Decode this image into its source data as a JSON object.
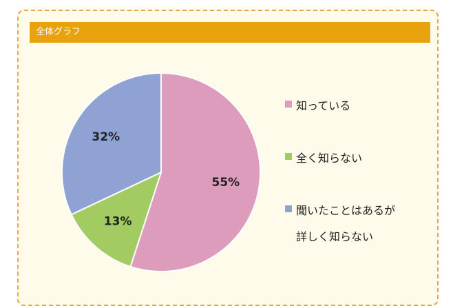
{
  "panel": {
    "title": "全体グラフ"
  },
  "colors": {
    "title_bar": "#e8a20c",
    "panel_border": "#e8a64a",
    "panel_bg": "#fffbea"
  },
  "chart_data": {
    "type": "pie",
    "title": "",
    "categories": [
      "知っている",
      "全く知らない",
      "聞いたことはあるが詳しく知らない"
    ],
    "values": [
      55,
      13,
      32
    ],
    "data_labels": [
      "55%",
      "13%",
      "32%"
    ],
    "colors": [
      "#de9cbd",
      "#a2cc61",
      "#8ea3d3"
    ],
    "start_angle_deg": 0,
    "direction": "clockwise",
    "legend": {
      "placement": "right",
      "entries": [
        {
          "lines": [
            "知っている"
          ]
        },
        {
          "lines": [
            "全く知らない"
          ]
        },
        {
          "lines": [
            "聞いたことはあるが",
            "詳しく知らない"
          ]
        }
      ]
    }
  }
}
